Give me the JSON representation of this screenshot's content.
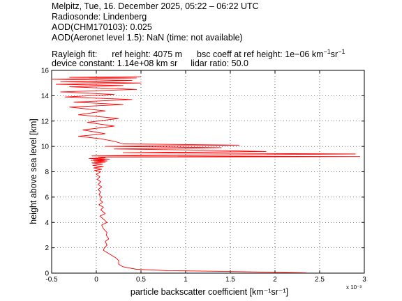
{
  "header": {
    "line1": "Melpitz, Tue, 16. December 2025, 05:22 – 06:22 UTC",
    "line2": "Radiosonde: Lindenberg",
    "line3": "AOD(CHM170103): 0.025",
    "line4": "AOD(Aeronet level 1.5): NaN   (time: not available)",
    "rayleigh_label": "Rayleigh fit:",
    "ref_height": "ref height: 4075 m",
    "bsc_coeff_text": "bsc coeff at ref height: 1e−06 km",
    "device_constant": "device constant: 1.14e+08 km sr",
    "lidar_ratio": "lidar ratio: 50.0"
  },
  "chart_data": {
    "type": "line",
    "xlabel": "particle backscatter coefficient [km⁻¹sr⁻¹]",
    "ylabel": "height above sea level [km]",
    "x_multiplier_label": "x 10⁻³",
    "xlim": [
      -0.5,
      3.0
    ],
    "ylim": [
      0,
      16
    ],
    "grid": true,
    "x_ticks": [
      "-0.5",
      "0",
      "0.5",
      "1",
      "1.5",
      "2",
      "2.5",
      "3"
    ],
    "y_ticks": [
      "0",
      "2",
      "4",
      "6",
      "8",
      "10",
      "12",
      "14",
      "16"
    ],
    "series": [
      {
        "color": "#ff0000",
        "x": [
          2.35,
          1.6,
          0.8,
          0.45,
          0.3,
          0.25,
          0.25,
          0.22,
          0.15,
          0.08,
          0.09,
          0.12,
          0.1,
          0.14,
          0.11,
          0.12,
          0.08,
          0.06,
          0.12,
          0.09,
          0.04,
          0.1,
          0.05,
          0.08,
          0.03,
          0.07,
          0.04,
          0.06,
          0.03,
          0.05,
          0.02,
          0.06,
          0.02,
          0.05,
          0.01,
          0.04,
          0.0,
          0.05,
          -0.02,
          0.06,
          -0.03,
          0.08,
          -0.04,
          0.07,
          -0.05,
          0.1,
          -0.02,
          0.12,
          -0.06,
          0.09,
          -0.03,
          0.15,
          -0.08,
          0.1,
          0.02,
          2.95,
          -0.05,
          0.5,
          2.9,
          0.3,
          1.9,
          1.2,
          0.2,
          1.4,
          0.1,
          1.6,
          0.3,
          0.2,
          0.05,
          -0.2,
          0.1,
          -0.15,
          0.2,
          -0.1,
          0.25,
          -0.2,
          0.1,
          -0.3,
          0.3,
          -0.25,
          0.4,
          -0.35,
          0.2,
          -0.4,
          0.45,
          -0.3,
          0.3,
          -0.45,
          0.5,
          -0.4,
          0.4,
          -0.5,
          0.45,
          -0.3,
          0.5
        ],
        "y": [
          0.02,
          0.12,
          0.2,
          0.3,
          0.5,
          0.7,
          1.0,
          1.2,
          1.5,
          1.8,
          2.0,
          2.2,
          2.5,
          2.7,
          3.0,
          3.2,
          3.5,
          3.8,
          4.0,
          4.2,
          4.5,
          4.7,
          5.0,
          5.2,
          5.4,
          5.6,
          5.8,
          6.0,
          6.2,
          6.4,
          6.6,
          6.8,
          7.0,
          7.2,
          7.4,
          7.6,
          7.8,
          8.0,
          8.1,
          8.2,
          8.3,
          8.4,
          8.5,
          8.6,
          8.7,
          8.75,
          8.8,
          8.85,
          8.9,
          8.92,
          8.95,
          9.0,
          9.05,
          9.1,
          9.15,
          9.2,
          9.25,
          9.3,
          9.4,
          9.5,
          9.6,
          9.7,
          9.8,
          9.9,
          10.0,
          10.1,
          10.2,
          10.4,
          10.6,
          10.8,
          11.0,
          11.3,
          11.6,
          11.9,
          12.2,
          12.5,
          12.8,
          13.1,
          13.3,
          13.5,
          13.7,
          13.9,
          14.1,
          14.3,
          14.5,
          14.7,
          14.8,
          14.9,
          15.0,
          15.1,
          15.2,
          15.3,
          15.4,
          15.45,
          15.5
        ]
      }
    ]
  }
}
